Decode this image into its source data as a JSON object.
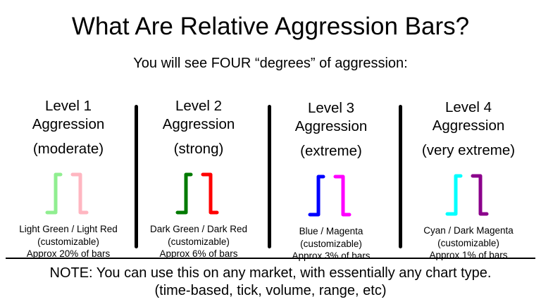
{
  "title": "What Are Relative Aggression Bars?",
  "subtitle": "You will see FOUR “degrees” of aggression:",
  "levels": [
    {
      "level": "Level 1",
      "label": "Aggression",
      "degree": "(moderate)",
      "colors": "Light Green / Light Red",
      "custom": "(customizable)",
      "freq": "Approx 20% of bars",
      "up_color": "#90EE90",
      "down_color": "#FFB6C1"
    },
    {
      "level": "Level 2",
      "label": "Aggression",
      "degree": "(strong)",
      "colors": "Dark Green / Dark Red",
      "custom": "(customizable)",
      "freq": "Approx 6% of bars",
      "up_color": "#007A00",
      "down_color": "#FF0000"
    },
    {
      "level": "Level 3",
      "label": "Aggression",
      "degree": "(extreme)",
      "colors": "Blue / Magenta",
      "custom": "(customizable)",
      "freq": "Approx 3% of bars",
      "up_color": "#0000FF",
      "down_color": "#FF00FF"
    },
    {
      "level": "Level 4",
      "label": "Aggression",
      "degree": "(very extreme)",
      "colors": "Cyan / Dark Magenta",
      "custom": "(customizable)",
      "freq": "Approx 1% of bars",
      "up_color": "#00FFFF",
      "down_color": "#8B008B"
    }
  ],
  "note": {
    "line1": "NOTE: You can use this on any market, with essentially any chart type.",
    "line2": "(time-based, tick, volume, range, etc)"
  }
}
